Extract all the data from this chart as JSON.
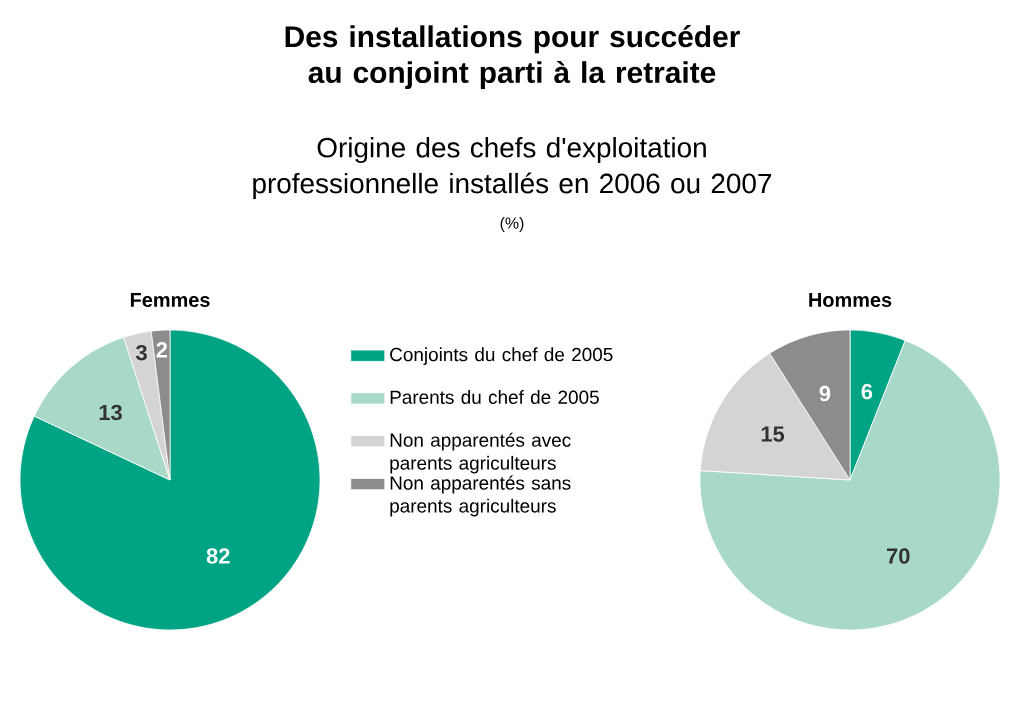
{
  "chart_data": [
    {
      "type": "other",
      "title": "Des installations pour succéder au conjoint parti à la retraite",
      "subtitle": "Origine des chefs d'exploitation professionnelle installés en 2006 ou 2007",
      "annotations": [
        "(%)"
      ]
    },
    {
      "type": "pie",
      "title": "Femmes",
      "categories": [
        "Conjoints du chef de 2005",
        "Parents du chef de 2005",
        "Non apparentés avec parents agriculteurs",
        "Non apparentés sans parents agriculteurs"
      ],
      "values": [
        82,
        13,
        3,
        2
      ],
      "colors": [
        "#00a384",
        "#a8d9c8",
        "#d4d4d4",
        "#8c8c8c"
      ],
      "data_labels": true,
      "legend": "right"
    },
    {
      "type": "pie",
      "title": "Hommes",
      "categories": [
        null,
        null,
        null,
        null
      ],
      "values": [
        6,
        70,
        15,
        9
      ],
      "colors": [
        "#00a384",
        "#a8d9c8",
        "#d4d4d4",
        "#8c8c8c"
      ],
      "data_labels": true
    }
  ]
}
